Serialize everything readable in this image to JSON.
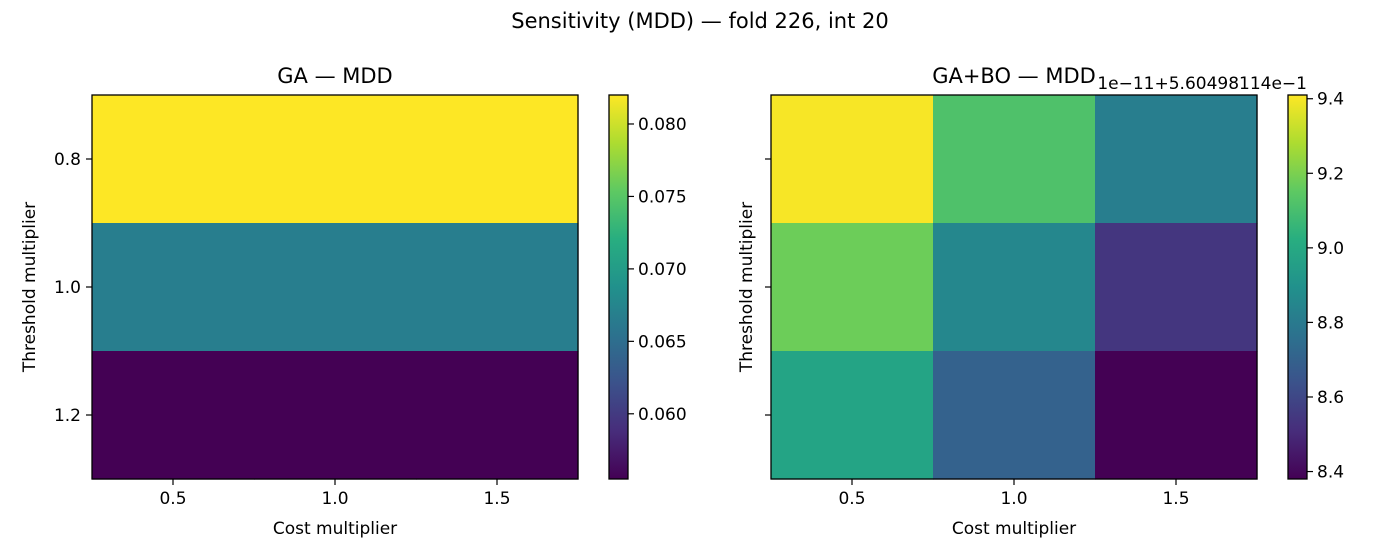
{
  "figure": {
    "suptitle": "Sensitivity (MDD) — fold 226, int 20"
  },
  "chart_data": [
    {
      "type": "heatmap",
      "title": "GA — MDD",
      "xlabel": "Cost multiplier",
      "ylabel": "Threshold multiplier",
      "x_categories": [
        "0.5",
        "1.0",
        "1.5"
      ],
      "y_categories": [
        "0.8",
        "1.0",
        "1.2"
      ],
      "values": [
        [
          0.082,
          0.082,
          0.082
        ],
        [
          0.0668,
          0.0668,
          0.0668
        ],
        [
          0.0555,
          0.0555,
          0.0555
        ]
      ],
      "colorbar": {
        "range": [
          0.0555,
          0.082
        ],
        "ticks": [
          "0.060",
          "0.065",
          "0.070",
          "0.075",
          "0.080"
        ],
        "offset_text": "",
        "colormap": "viridis"
      },
      "show_y_tick_labels": true
    },
    {
      "type": "heatmap",
      "title": "GA+BO — MDD",
      "xlabel": "Cost multiplier",
      "ylabel": "Threshold multiplier",
      "x_categories": [
        "0.5",
        "1.0",
        "1.5"
      ],
      "y_categories": [
        "0.8",
        "1.0",
        "1.2"
      ],
      "values": [
        [
          9.4,
          9.12,
          8.82
        ],
        [
          9.18,
          8.86,
          8.54
        ],
        [
          8.98,
          8.7,
          8.38
        ]
      ],
      "colorbar": {
        "range": [
          8.38,
          9.41
        ],
        "ticks": [
          "8.4",
          "8.6",
          "8.8",
          "9.0",
          "9.2",
          "9.4"
        ],
        "offset_text": "1e−11+5.60498114e−1",
        "colormap": "viridis"
      },
      "show_y_tick_labels": false
    }
  ]
}
